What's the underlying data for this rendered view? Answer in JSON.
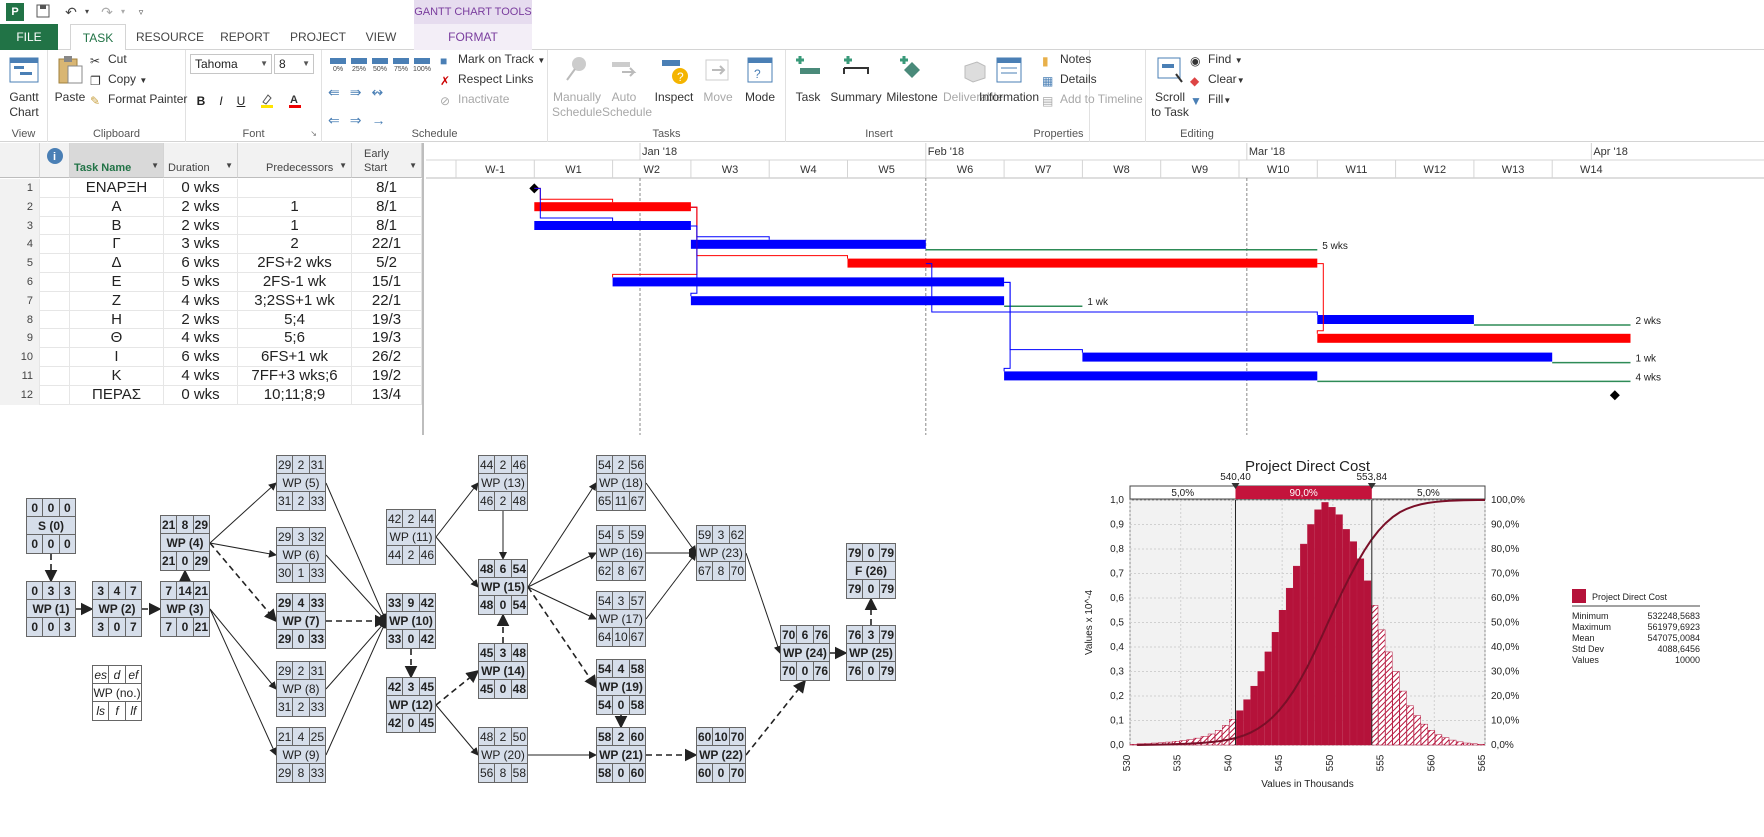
{
  "qat": {
    "icons": [
      "project-app-icon",
      "save-icon",
      "undo-icon",
      "redo-icon",
      "customize-icon"
    ]
  },
  "tabs": {
    "file": "FILE",
    "task": "TASK",
    "resource": "RESOURCE",
    "report": "REPORT",
    "project": "PROJECT",
    "view": "VIEW",
    "context_tools": "GANTT CHART TOOLS",
    "format": "FORMAT"
  },
  "ribbon": {
    "view": {
      "gantt_chart": "Gantt Chart",
      "label": "View"
    },
    "clipboard": {
      "paste": "Paste",
      "cut": "Cut",
      "copy": "Copy",
      "format_painter": "Format Painter",
      "label": "Clipboard"
    },
    "font": {
      "font_name": "Tahoma",
      "font_size": "8",
      "bold": "B",
      "italic": "I",
      "underline": "U",
      "label": "Font"
    },
    "schedule": {
      "pct_buttons": [
        "0%",
        "25%",
        "50%",
        "75%",
        "100%"
      ],
      "mark_on_track": "Mark on Track",
      "respect_links": "Respect Links",
      "inactivate": "Inactivate",
      "label": "Schedule"
    },
    "tasks": {
      "manually_schedule_line1": "Manually",
      "manually_schedule_line2": "Schedule",
      "auto_schedule_line1": "Auto",
      "auto_schedule_line2": "Schedule",
      "inspect": "Inspect",
      "move": "Move",
      "mode": "Mode",
      "label": "Tasks"
    },
    "insert": {
      "task": "Task",
      "summary": "Summary",
      "milestone": "Milestone",
      "deliverable": "Deliverable",
      "label": "Insert"
    },
    "properties": {
      "information": "Information",
      "notes": "Notes",
      "details": "Details",
      "add_to_timeline": "Add to Timeline",
      "label": "Properties"
    },
    "editing": {
      "scroll_line1": "Scroll",
      "scroll_line2": "to Task",
      "find": "Find",
      "clear": "Clear",
      "fill": "Fill",
      "label": "Editing"
    }
  },
  "gantt_table": {
    "headers": {
      "task_name": "Task Name",
      "duration": "Duration",
      "predecessors": "Predecessors",
      "early_start_line1": "Early",
      "early_start_line2": "Start"
    },
    "rows": [
      {
        "no": "1",
        "name": "ΕΝΑΡΞΗ",
        "duration": "0 wks",
        "pred": "",
        "start": "8/1"
      },
      {
        "no": "2",
        "name": "A",
        "duration": "2 wks",
        "pred": "1",
        "start": "8/1"
      },
      {
        "no": "3",
        "name": "B",
        "duration": "2 wks",
        "pred": "1",
        "start": "8/1"
      },
      {
        "no": "4",
        "name": "Γ",
        "duration": "3 wks",
        "pred": "2",
        "start": "22/1"
      },
      {
        "no": "5",
        "name": "Δ",
        "duration": "6 wks",
        "pred": "2FS+2 wks",
        "start": "5/2"
      },
      {
        "no": "6",
        "name": "E",
        "duration": "5 wks",
        "pred": "2FS-1 wk",
        "start": "15/1"
      },
      {
        "no": "7",
        "name": "Z",
        "duration": "4 wks",
        "pred": "3;2SS+1 wk",
        "start": "22/1"
      },
      {
        "no": "8",
        "name": "H",
        "duration": "2 wks",
        "pred": "5;4",
        "start": "19/3"
      },
      {
        "no": "9",
        "name": "Θ",
        "duration": "4 wks",
        "pred": "5;6",
        "start": "19/3"
      },
      {
        "no": "10",
        "name": "I",
        "duration": "6 wks",
        "pred": "6FS+1 wk",
        "start": "26/2"
      },
      {
        "no": "11",
        "name": "K",
        "duration": "4 wks",
        "pred": "7FF+3 wks;6",
        "start": "19/2"
      },
      {
        "no": "12",
        "name": "ΠΕΡΑΣ",
        "duration": "0 wks",
        "pred": "10;11;8;9",
        "start": "13/4"
      }
    ]
  },
  "gantt_chart": {
    "months": [
      "Jan '18",
      "Feb '18",
      "Mar '18",
      "Apr '18"
    ],
    "weeks": [
      "W-1",
      "W1",
      "W2",
      "W3",
      "W4",
      "W5",
      "W6",
      "W7",
      "W8",
      "W9",
      "W10",
      "W11",
      "W12",
      "W13",
      "W14"
    ],
    "slack_labels": [
      "5 wks",
      "1 wk",
      "2 wks",
      "1 wk",
      "4 wks"
    ],
    "colors": {
      "critical": "#ff0000",
      "noncritical": "#0000ff",
      "slack": "#2e8b57"
    },
    "bars": [
      {
        "row": 2,
        "start_week": 1,
        "duration_weeks": 2,
        "critical": true
      },
      {
        "row": 3,
        "start_week": 1,
        "duration_weeks": 2,
        "critical": false
      },
      {
        "row": 4,
        "start_week": 3,
        "duration_weeks": 3,
        "critical": false,
        "slack_weeks": 5
      },
      {
        "row": 5,
        "start_week": 5,
        "duration_weeks": 6,
        "critical": true
      },
      {
        "row": 6,
        "start_week": 2,
        "duration_weeks": 5,
        "critical": false
      },
      {
        "row": 7,
        "start_week": 3,
        "duration_weeks": 4,
        "critical": false,
        "slack_weeks": 1
      },
      {
        "row": 8,
        "start_week": 11,
        "duration_weeks": 2,
        "critical": false,
        "slack_weeks": 2
      },
      {
        "row": 9,
        "start_week": 11,
        "duration_weeks": 4,
        "critical": true
      },
      {
        "row": 10,
        "start_week": 8,
        "duration_weeks": 6,
        "critical": false,
        "slack_weeks": 1
      },
      {
        "row": 11,
        "start_week": 7,
        "duration_weeks": 4,
        "critical": false,
        "slack_weeks": 4
      }
    ]
  },
  "network": {
    "nodes": [
      {
        "id": "s",
        "top": [
          "0",
          "0",
          "0"
        ],
        "name": "S (0)",
        "bottom": [
          "0",
          "0",
          "0"
        ],
        "critical": true
      },
      {
        "id": "wp1",
        "top": [
          "0",
          "3",
          "3"
        ],
        "name": "WP (1)",
        "bottom": [
          "0",
          "0",
          "3"
        ],
        "critical": true
      },
      {
        "id": "wp2",
        "top": [
          "3",
          "4",
          "7"
        ],
        "name": "WP (2)",
        "bottom": [
          "3",
          "0",
          "7"
        ],
        "critical": true
      },
      {
        "id": "wp3",
        "top": [
          "7",
          "14",
          "21"
        ],
        "name": "WP (3)",
        "bottom": [
          "7",
          "0",
          "21"
        ],
        "critical": true
      },
      {
        "id": "wp4",
        "top": [
          "21",
          "8",
          "29"
        ],
        "name": "WP (4)",
        "bottom": [
          "21",
          "0",
          "29"
        ],
        "critical": true
      },
      {
        "id": "wp5",
        "top": [
          "29",
          "2",
          "31"
        ],
        "name": "WP (5)",
        "bottom": [
          "31",
          "2",
          "33"
        ],
        "critical": false
      },
      {
        "id": "wp6",
        "top": [
          "29",
          "3",
          "32"
        ],
        "name": "WP (6)",
        "bottom": [
          "30",
          "1",
          "33"
        ],
        "critical": false
      },
      {
        "id": "wp7",
        "top": [
          "29",
          "4",
          "33"
        ],
        "name": "WP (7)",
        "bottom": [
          "29",
          "0",
          "33"
        ],
        "critical": true
      },
      {
        "id": "wp8",
        "top": [
          "29",
          "2",
          "31"
        ],
        "name": "WP (8)",
        "bottom": [
          "31",
          "2",
          "33"
        ],
        "critical": false
      },
      {
        "id": "wp9",
        "top": [
          "21",
          "4",
          "25"
        ],
        "name": "WP (9)",
        "bottom": [
          "29",
          "8",
          "33"
        ],
        "critical": false
      },
      {
        "id": "wp10",
        "top": [
          "33",
          "9",
          "42"
        ],
        "name": "WP (10)",
        "bottom": [
          "33",
          "0",
          "42"
        ],
        "critical": true
      },
      {
        "id": "wp11",
        "top": [
          "42",
          "2",
          "44"
        ],
        "name": "WP (11)",
        "bottom": [
          "44",
          "2",
          "46"
        ],
        "critical": false
      },
      {
        "id": "wp12",
        "top": [
          "42",
          "3",
          "45"
        ],
        "name": "WP (12)",
        "bottom": [
          "42",
          "0",
          "45"
        ],
        "critical": true
      },
      {
        "id": "wp13",
        "top": [
          "44",
          "2",
          "46"
        ],
        "name": "WP (13)",
        "bottom": [
          "46",
          "2",
          "48"
        ],
        "critical": false
      },
      {
        "id": "wp14",
        "top": [
          "45",
          "3",
          "48"
        ],
        "name": "WP (14)",
        "bottom": [
          "45",
          "0",
          "48"
        ],
        "critical": true
      },
      {
        "id": "wp15",
        "top": [
          "48",
          "6",
          "54"
        ],
        "name": "WP (15)",
        "bottom": [
          "48",
          "0",
          "54"
        ],
        "critical": true
      },
      {
        "id": "wp20",
        "top": [
          "48",
          "2",
          "50"
        ],
        "name": "WP (20)",
        "bottom": [
          "56",
          "8",
          "58"
        ],
        "critical": false
      },
      {
        "id": "wp18",
        "top": [
          "54",
          "2",
          "56"
        ],
        "name": "WP (18)",
        "bottom": [
          "65",
          "11",
          "67"
        ],
        "critical": false
      },
      {
        "id": "wp16",
        "top": [
          "54",
          "5",
          "59"
        ],
        "name": "WP (16)",
        "bottom": [
          "62",
          "8",
          "67"
        ],
        "critical": false
      },
      {
        "id": "wp17",
        "top": [
          "54",
          "3",
          "57"
        ],
        "name": "WP (17)",
        "bottom": [
          "64",
          "10",
          "67"
        ],
        "critical": false
      },
      {
        "id": "wp19",
        "top": [
          "54",
          "4",
          "58"
        ],
        "name": "WP (19)",
        "bottom": [
          "54",
          "0",
          "58"
        ],
        "critical": true
      },
      {
        "id": "wp21",
        "top": [
          "58",
          "2",
          "60"
        ],
        "name": "WP (21)",
        "bottom": [
          "58",
          "0",
          "60"
        ],
        "critical": true
      },
      {
        "id": "wp23",
        "top": [
          "59",
          "3",
          "62"
        ],
        "name": "WP (23)",
        "bottom": [
          "67",
          "8",
          "70"
        ],
        "critical": false
      },
      {
        "id": "wp22",
        "top": [
          "60",
          "10",
          "70"
        ],
        "name": "WP (22)",
        "bottom": [
          "60",
          "0",
          "70"
        ],
        "critical": true
      },
      {
        "id": "wp24",
        "top": [
          "70",
          "6",
          "76"
        ],
        "name": "WP (24)",
        "bottom": [
          "70",
          "0",
          "76"
        ],
        "critical": true
      },
      {
        "id": "wp25",
        "top": [
          "76",
          "3",
          "79"
        ],
        "name": "WP (25)",
        "bottom": [
          "76",
          "0",
          "79"
        ],
        "critical": true
      },
      {
        "id": "f",
        "top": [
          "79",
          "0",
          "79"
        ],
        "name": "F (26)",
        "bottom": [
          "79",
          "0",
          "79"
        ],
        "critical": true
      }
    ],
    "legend": {
      "top": [
        "es",
        "d",
        "ef"
      ],
      "name": "WP (no.)",
      "bottom": [
        "ls",
        "f",
        "lf"
      ]
    }
  },
  "chart_data": {
    "type": "bar",
    "title": "Project Direct Cost",
    "xlabel": "Values in Thousands",
    "ylabel": "Values x 10^-4",
    "x_ticks": [
      "530",
      "535",
      "540",
      "545",
      "550",
      "555",
      "560",
      "565"
    ],
    "y_ticks": [
      "0,0",
      "0,1",
      "0,2",
      "0,3",
      "0,4",
      "0,5",
      "0,6",
      "0,7",
      "0,8",
      "0,9",
      "1,0"
    ],
    "y2_ticks": [
      "0,0%",
      "10,0%",
      "20,0%",
      "30,0%",
      "40,0%",
      "50,0%",
      "60,0%",
      "70,0%",
      "80,0%",
      "90,0%",
      "100,0%"
    ],
    "xlim": [
      530,
      565
    ],
    "ylim": [
      0,
      1.0
    ],
    "markers": [
      "540,40",
      "553,84"
    ],
    "marker_values": [
      540.4,
      553.84
    ],
    "bands": [
      "5,0%",
      "90,0%",
      "5,0%"
    ],
    "colors": {
      "bar": "#b5123a",
      "band": "#c4143c",
      "curve": "#7a0f28"
    },
    "histogram": {
      "bin_start": 530,
      "bin_width": 0.7,
      "values": [
        0.003,
        0.005,
        0.006,
        0.008,
        0.01,
        0.012,
        0.015,
        0.018,
        0.022,
        0.028,
        0.035,
        0.045,
        0.06,
        0.08,
        0.105,
        0.14,
        0.185,
        0.24,
        0.3,
        0.38,
        0.46,
        0.55,
        0.64,
        0.73,
        0.82,
        0.9,
        0.96,
        0.99,
        0.97,
        0.94,
        0.88,
        0.83,
        0.76,
        0.67,
        0.57,
        0.47,
        0.38,
        0.3,
        0.22,
        0.16,
        0.12,
        0.085,
        0.06,
        0.042,
        0.03,
        0.02,
        0.013,
        0.008,
        0.005,
        0.003
      ]
    },
    "legend": {
      "series": "Project Direct Cost",
      "stats": [
        {
          "label": "Minimum",
          "value": "532248,5683"
        },
        {
          "label": "Maximum",
          "value": "561979,6923"
        },
        {
          "label": "Mean",
          "value": "547075,0084"
        },
        {
          "label": "Std Dev",
          "value": "4088,6456"
        },
        {
          "label": "Values",
          "value": "10000"
        }
      ]
    }
  }
}
